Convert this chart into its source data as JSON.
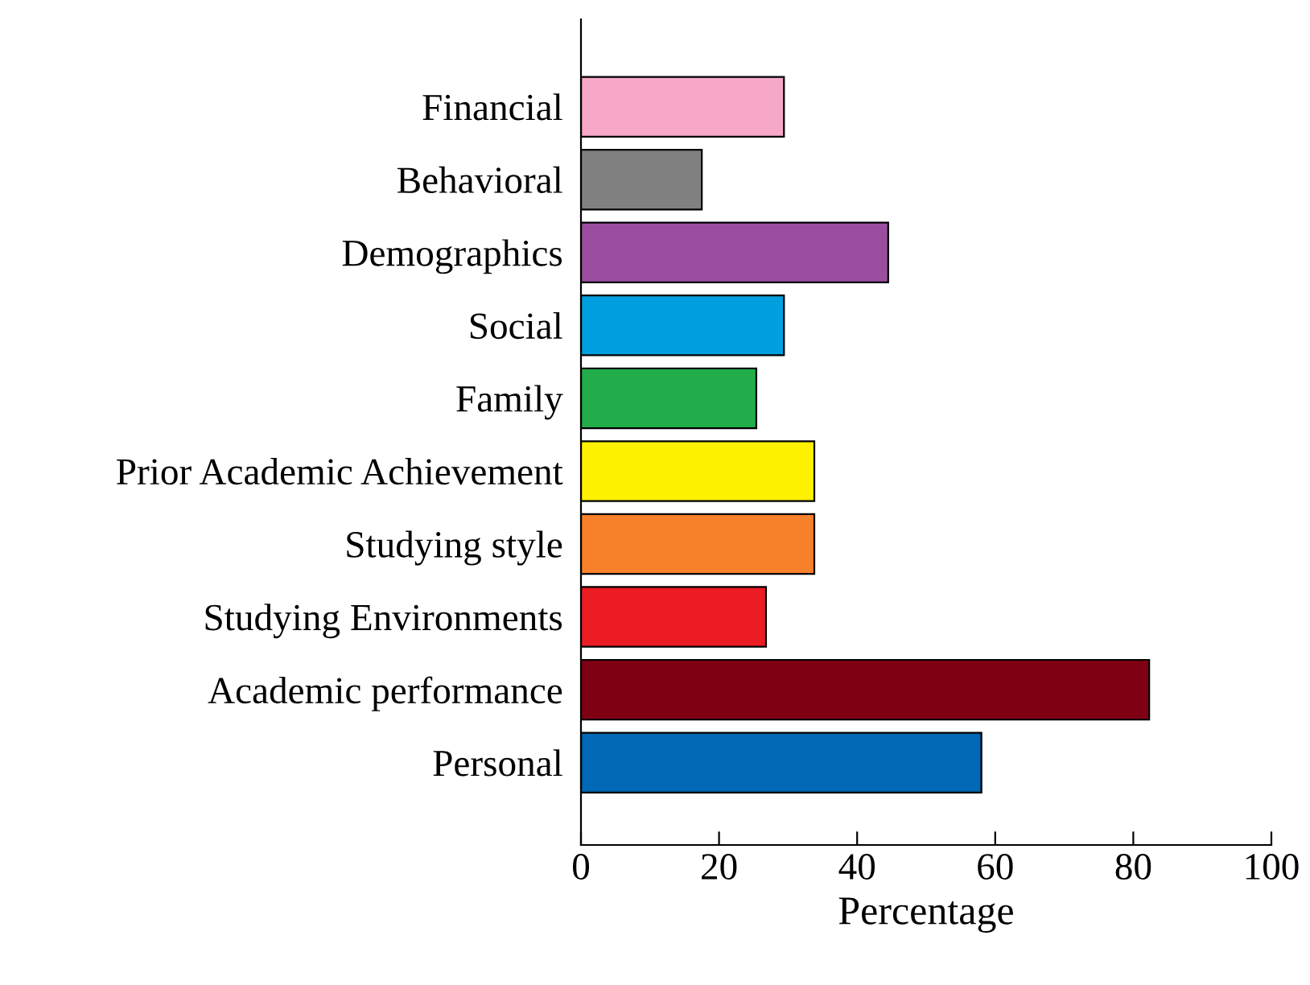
{
  "chart_data": {
    "type": "bar",
    "orientation": "horizontal",
    "xlabel": "Percentage",
    "categories": [
      "Financial",
      "Behavioral",
      "Demographics",
      "Social",
      "Family",
      "Prior Academic Achievement",
      "Studying style",
      "Studying Environments",
      "Academic performance",
      "Personal"
    ],
    "values": [
      29.4,
      17.5,
      44.5,
      29.4,
      25.4,
      33.8,
      33.8,
      26.8,
      82.3,
      58
    ],
    "colors": [
      "#f7a8c8",
      "#808080",
      "#9b4ea0",
      "#00a0e0",
      "#22ad4a",
      "#fff200",
      "#f7802a",
      "#ec1c24",
      "#7f0012",
      "#0068b4"
    ],
    "xlim": [
      0,
      100
    ],
    "xticks": [
      0,
      20,
      40,
      60,
      80,
      100
    ],
    "grid": false,
    "legend": false
  }
}
